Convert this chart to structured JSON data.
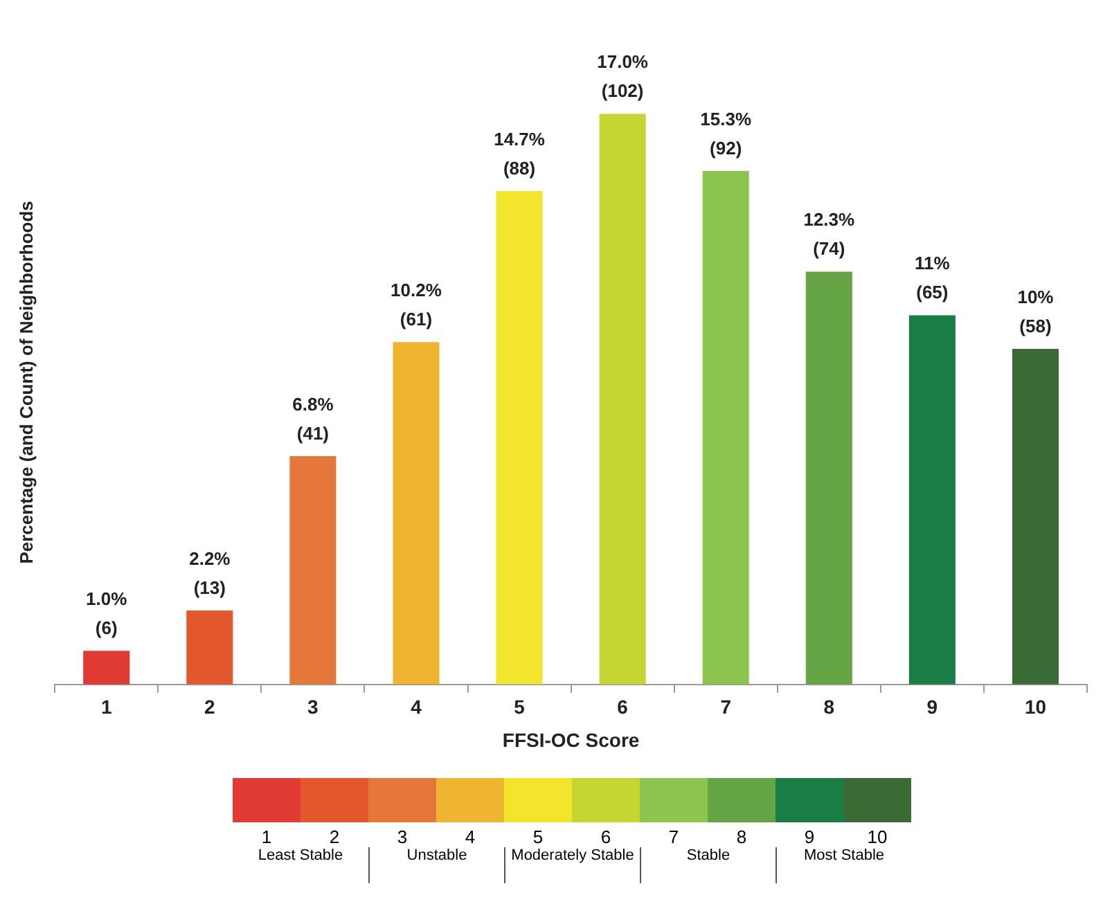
{
  "chart_data": {
    "type": "bar",
    "xlabel": "FFSI-OC Score",
    "ylabel": "Percentage (and Count) of Neighborhoods",
    "categories": [
      "1",
      "2",
      "3",
      "4",
      "5",
      "6",
      "7",
      "8",
      "9",
      "10"
    ],
    "values": [
      1.0,
      2.2,
      6.8,
      10.2,
      14.7,
      17.0,
      15.3,
      12.3,
      11,
      10
    ],
    "value_labels": [
      "1.0% (6)",
      "2.2% (13)",
      "6.8% (41)",
      "10.2% (61)",
      "14.7% (88)",
      "17.0% (102)",
      "15.3% (92)",
      "12.3% (74)",
      "11% (65)",
      "10% (58)"
    ],
    "colors": [
      "#e03a32",
      "#e2582c",
      "#e5773a",
      "#f0b530",
      "#f2e52c",
      "#c5d531",
      "#8cc54f",
      "#66a545",
      "#1a7d45",
      "#3b6b35"
    ],
    "annotations": [
      "Least Stable",
      "Unstable",
      "Moderately Stable",
      "Stable",
      "Most Stable"
    ],
    "grid": false,
    "legend": false
  }
}
